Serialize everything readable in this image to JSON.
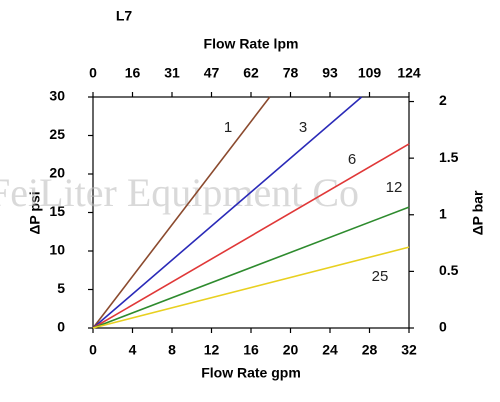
{
  "chart_data": {
    "type": "line",
    "title": "L7",
    "xlabel": "Flow Rate gpm",
    "x2label": "Flow Rate lpm",
    "ylabel": "ΔP psi",
    "y2label": "ΔP bar",
    "watermark": "FeiLiter Equipment Co",
    "xlim": [
      0,
      32
    ],
    "xticks": [
      0,
      4,
      8,
      12,
      16,
      20,
      24,
      28,
      32
    ],
    "x2lim": [
      0,
      124
    ],
    "x2ticks": [
      0,
      {
        "value": 15.5,
        "label": "16"
      },
      31,
      {
        "value": 46.5,
        "label": "47"
      },
      62,
      {
        "value": 77.5,
        "label": "78"
      },
      93,
      {
        "value": 108.5,
        "label": "109"
      },
      124
    ],
    "ylim": [
      0,
      30
    ],
    "yticks": [
      0,
      5,
      10,
      15,
      20,
      25,
      30
    ],
    "y2lim": [
      0,
      2.04
    ],
    "y2ticks": [
      0,
      0.5,
      1,
      1.5,
      2
    ],
    "series": [
      {
        "name": "1",
        "color": "#8b4a2e",
        "x": [
          0,
          17.9
        ],
        "values": [
          0,
          30
        ]
      },
      {
        "name": "3",
        "color": "#2a2ab8",
        "x": [
          0,
          27.2
        ],
        "values": [
          0,
          30
        ]
      },
      {
        "name": "6",
        "color": "#e03838",
        "x": [
          0,
          32
        ],
        "values": [
          0,
          23.9
        ]
      },
      {
        "name": "12",
        "color": "#2e8b2e",
        "x": [
          0,
          32
        ],
        "values": [
          0,
          15.7
        ]
      },
      {
        "name": "25",
        "color": "#e8d020",
        "x": [
          0,
          32
        ],
        "values": [
          0,
          10.5
        ]
      }
    ]
  }
}
